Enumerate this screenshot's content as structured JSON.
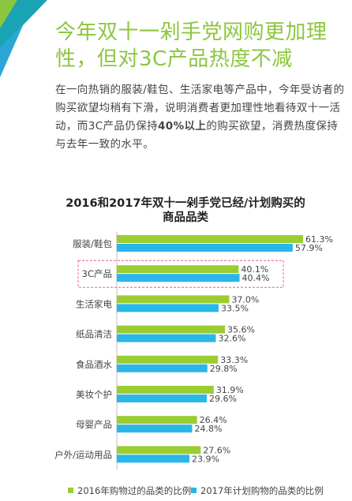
{
  "header": {
    "title_line1": "今年双十一剁手党网购更加理",
    "title_line2": "性，但对3C产品热度不减"
  },
  "body": {
    "text_before": "在一向热销的服装/鞋包、生活家电等产品中，今年受访者的购买欲望均稍有下滑，说明消费者更加理性地看待双十一活动，而3C产品仍保持",
    "text_bold": "40%以上",
    "text_after": "的购买欲望，消费热度保持与去年一致的水平。"
  },
  "colors": {
    "brand_green": "#8cc63f",
    "series_2016": "#9acd32",
    "series_2017": "#29b6e8",
    "corner_teal": "#1aa3b3",
    "corner_blue": "#2aa7d6",
    "corner_green": "#8cc63f",
    "highlight_border": "#e06080"
  },
  "chart_data": {
    "type": "bar",
    "orientation": "horizontal",
    "title_line1": "2016和2017年双十一剁手党已经/计划购买的",
    "title_line2": "商品品类",
    "categories": [
      "服装/鞋包",
      "3C产品",
      "生活家电",
      "纸品清洁",
      "食品酒水",
      "美妆个护",
      "母婴产品",
      "户外/运动用品"
    ],
    "series": [
      {
        "name": "2016年购物过的品类的比例",
        "values": [
          61.3,
          40.1,
          37.0,
          35.6,
          33.3,
          31.9,
          26.4,
          27.6
        ]
      },
      {
        "name": "2017年计划购物的品类的比例",
        "values": [
          57.9,
          40.4,
          33.5,
          32.6,
          29.8,
          29.6,
          24.8,
          23.9
        ]
      }
    ],
    "value_labels": [
      [
        "61.3%",
        "40.1%",
        "37.0%",
        "35.6%",
        "33.3%",
        "31.9%",
        "26.4%",
        "27.6%"
      ],
      [
        "57.9%",
        "40.4%",
        "33.5%",
        "32.6%",
        "29.8%",
        "29.6%",
        "24.8%",
        "23.9%"
      ]
    ],
    "highlighted_category": "3C产品",
    "legend_position": "bottom",
    "grid": false
  }
}
